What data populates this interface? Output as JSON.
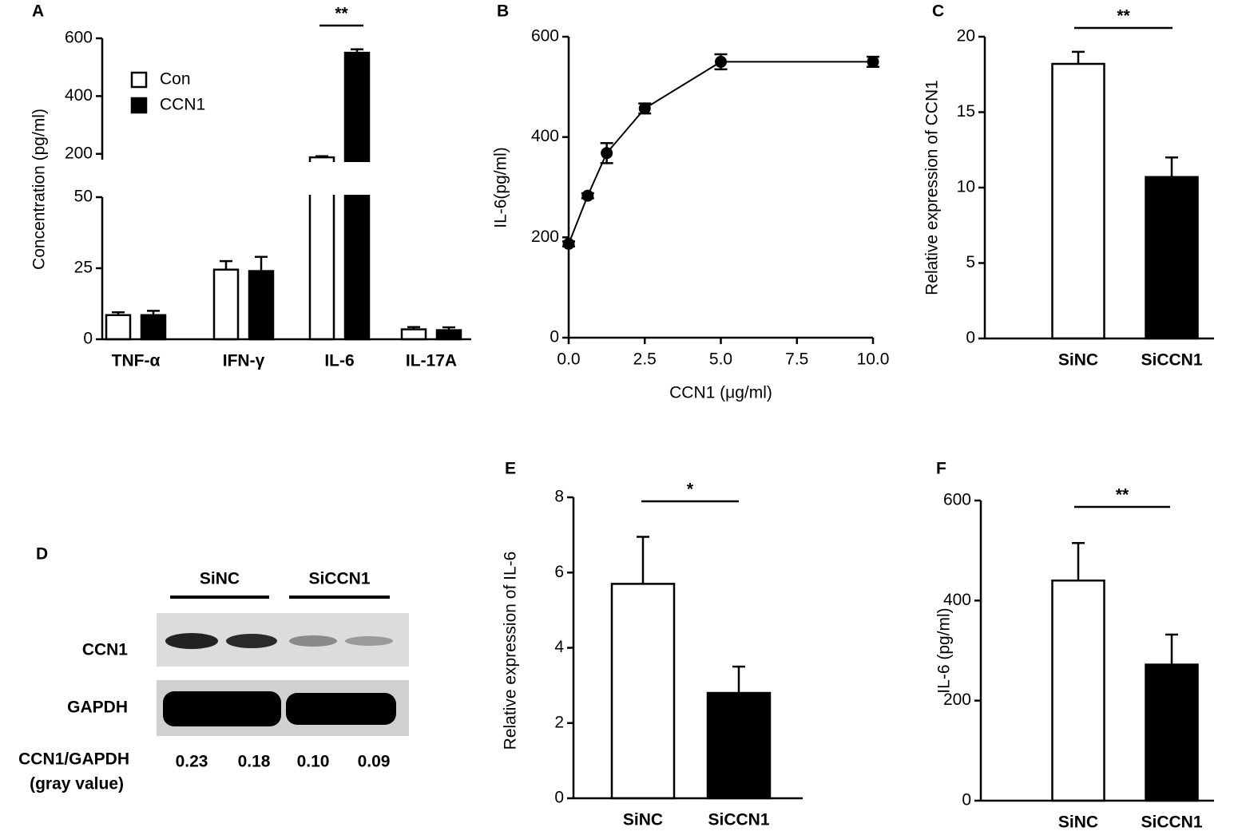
{
  "chart_data": [
    {
      "type": "bar",
      "panel": "A",
      "ylabel": "Concentration (pg/ml)",
      "categories": [
        "TNF-α",
        "IFN-γ",
        "IL-6",
        "IL-17A"
      ],
      "series": [
        {
          "name": "Con",
          "color": "#ffffff",
          "values": [
            8.5,
            24.5,
            188,
            3.5
          ],
          "errors": [
            1,
            3,
            4,
            0.8
          ]
        },
        {
          "name": "CCN1",
          "color": "#000000",
          "values": [
            8.5,
            24,
            550,
            3.2
          ],
          "errors": [
            1.5,
            5,
            12,
            1
          ]
        }
      ],
      "ylim": [
        0,
        600
      ],
      "ybreak": [
        50,
        180
      ],
      "yticks": [
        0,
        25,
        50,
        200,
        400,
        600
      ],
      "annotation": "**"
    },
    {
      "type": "line",
      "panel": "B",
      "ylabel": "IL-6(pg/ml)",
      "xlabel": "CCN1 (μg/ml)",
      "color": "#000000",
      "x": [
        0,
        0.625,
        1.25,
        2.5,
        5,
        10
      ],
      "values": [
        187,
        283,
        368,
        457,
        550,
        550
      ],
      "errors": [
        5,
        5,
        20,
        10,
        15,
        10
      ],
      "xlim": [
        0,
        10
      ],
      "xticks": [
        {
          "value": 0,
          "label": "0.0"
        },
        2.5,
        {
          "value": 5,
          "label": "5.0"
        },
        7.5,
        {
          "value": 10,
          "label": "10.0"
        }
      ],
      "ylim": [
        0,
        600
      ],
      "yticks": [
        0,
        200,
        400,
        600
      ]
    },
    {
      "type": "bar",
      "panel": "C",
      "ylabel": "Relative expression of CCN1",
      "categories": [
        "SiNC",
        "SiCCN1"
      ],
      "values": [
        18.2,
        10.7
      ],
      "errors": [
        0.8,
        1.3
      ],
      "colors": [
        "#ffffff",
        "#000000"
      ],
      "ylim": [
        0,
        20
      ],
      "yticks": [
        0,
        5,
        10,
        15,
        20
      ],
      "annotation": "**"
    },
    {
      "type": "bar",
      "panel": "E",
      "ylabel": "Relative expression of IL-6",
      "categories": [
        "SiNC",
        "SiCCN1"
      ],
      "values": [
        5.7,
        2.8
      ],
      "errors": [
        1.25,
        0.7
      ],
      "colors": [
        "#ffffff",
        "#000000"
      ],
      "ylim": [
        0,
        8
      ],
      "yticks": [
        0,
        2,
        4,
        6,
        8
      ],
      "annotation": "*"
    },
    {
      "type": "bar",
      "panel": "F",
      "ylabel": "IL-6 (pg/ml)",
      "categories": [
        "SiNC",
        "SiCCN1"
      ],
      "values": [
        440,
        272
      ],
      "errors": [
        75,
        60
      ],
      "colors": [
        "#ffffff",
        "#000000"
      ],
      "ylim": [
        0,
        600
      ],
      "yticks": [
        0,
        200,
        400,
        600
      ],
      "annotation": "**"
    }
  ],
  "blot": {
    "panel": "D",
    "groups": [
      "SiNC",
      "SiCCN1"
    ],
    "rows": [
      "CCN1",
      "GAPDH"
    ],
    "ratio_label": "CCN1/GAPDH",
    "ratio_note": "(gray value)",
    "ratios": [
      "0.23",
      "0.18",
      "0.10",
      "0.09"
    ]
  }
}
